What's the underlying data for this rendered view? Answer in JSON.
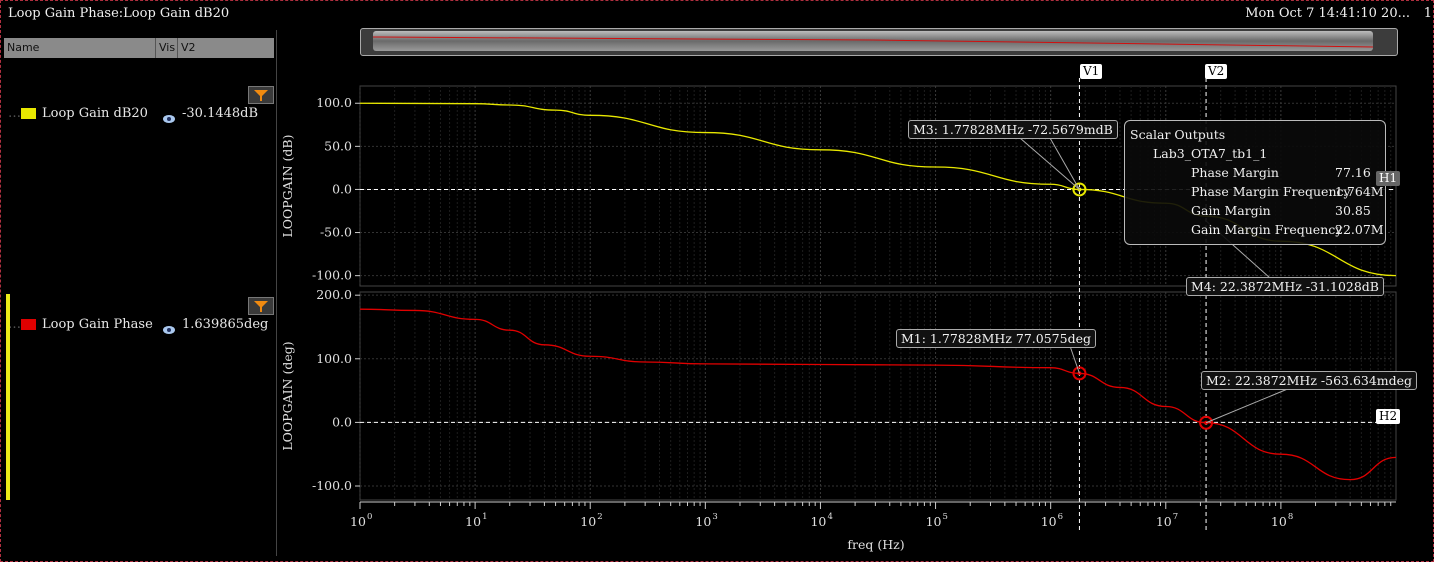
{
  "window": {
    "title": "Loop Gain Phase:Loop Gain dB20",
    "datetime": "Mon Oct 7 14:41:10 20...",
    "corner_text": "1"
  },
  "signal_list": {
    "headers": [
      "Name",
      "Vis",
      "V2"
    ],
    "signals": [
      {
        "name": "Loop Gain dB20",
        "color": "#e8e800",
        "value": "-30.1448dB"
      },
      {
        "name": "Loop Gain Phase",
        "color": "#e00000",
        "value": "1.639865deg"
      }
    ]
  },
  "vertical_markers": [
    "V1",
    "V2"
  ],
  "horizontal_markers": [
    "H1",
    "H2"
  ],
  "markers": {
    "m1": "M1: 1.77828MHz 77.0575deg",
    "m2": "M2: 22.3872MHz -563.634mdeg",
    "m3": "M3: 1.77828MHz -72.5679mdB",
    "m4": "M4: 22.3872MHz -31.1028dB"
  },
  "scalar_outputs": {
    "title": "Scalar Outputs",
    "test": "Lab3_OTA7_tb1_1",
    "rows": [
      {
        "name": "Phase Margin",
        "value": "77.16"
      },
      {
        "name": "Phase Margin Frequency",
        "value": "1.764M"
      },
      {
        "name": "Gain Margin",
        "value": "30.85"
      },
      {
        "name": "Gain Margin Frequency",
        "value": "22.07M"
      }
    ]
  },
  "chart_data": [
    {
      "type": "line",
      "ylabel": "LOOPGAIN (dB)",
      "xlabel": "freq (Hz)",
      "xscale": "log",
      "xlim": [
        1,
        1000000000
      ],
      "ylim": [
        -112,
        120
      ],
      "yticks": [
        "100.0",
        "50.0",
        "0.0",
        "-50.0",
        "-100.0"
      ],
      "series": [
        {
          "name": "Loop Gain dB20",
          "color": "#e8e800",
          "x": [
            1,
            10,
            20,
            50,
            100,
            1000,
            10000,
            100000,
            1000000,
            1778280,
            10000000,
            22387200,
            100000000,
            1000000000
          ],
          "y": [
            100,
            99.5,
            98,
            92,
            86,
            66,
            46,
            26,
            6,
            0,
            -16,
            -31,
            -60,
            -100
          ]
        }
      ]
    },
    {
      "type": "line",
      "ylabel": "LOOPGAIN (deg)",
      "xlabel": "freq (Hz)",
      "xscale": "log",
      "xlim": [
        1,
        1000000000
      ],
      "ylim": [
        -122,
        205
      ],
      "yticks": [
        "200.0",
        "100.0",
        "0.0",
        "-100.0"
      ],
      "series": [
        {
          "name": "Loop Gain Phase",
          "color": "#e00000",
          "x": [
            1,
            3,
            10,
            20,
            40,
            100,
            300,
            1000,
            10000,
            100000,
            1000000,
            1778280,
            4000000,
            10000000,
            22387200,
            100000000,
            400000000,
            1000000000
          ],
          "y": [
            178,
            176,
            162,
            145,
            122,
            104,
            95,
            92,
            91,
            90,
            86,
            77,
            55,
            25,
            -0.56,
            -50,
            -90,
            -55
          ]
        }
      ]
    }
  ],
  "x_ticks": [
    "10^0",
    "10^1",
    "10^2",
    "10^3",
    "10^4",
    "10^5",
    "10^6",
    "10^7",
    "10^8"
  ]
}
